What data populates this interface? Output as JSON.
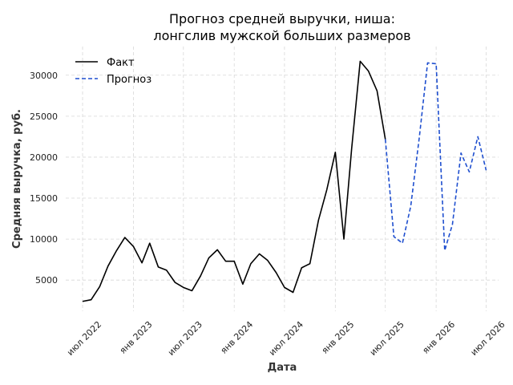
{
  "chart_data": {
    "type": "line",
    "title_lines": [
      "Прогноз средней выручки, ниша:",
      "лонгслив мужской больших размеров"
    ],
    "xlabel": "Дата",
    "ylabel": "Средняя выручка, руб.",
    "x_ticks": [
      {
        "date": "2022-07-01",
        "label": "июл 2022"
      },
      {
        "date": "2023-01-01",
        "label": "янв 2023"
      },
      {
        "date": "2023-07-01",
        "label": "июл 2023"
      },
      {
        "date": "2024-01-01",
        "label": "янв 2024"
      },
      {
        "date": "2024-07-01",
        "label": "июл 2024"
      },
      {
        "date": "2025-01-01",
        "label": "янв 2025"
      },
      {
        "date": "2025-07-01",
        "label": "июл 2025"
      },
      {
        "date": "2026-01-01",
        "label": "янв 2026"
      },
      {
        "date": "2026-07-01",
        "label": "июл 2026"
      }
    ],
    "y_ticks": [
      5000,
      10000,
      15000,
      20000,
      25000,
      30000
    ],
    "xlim": [
      "2022-05-01",
      "2026-08-15"
    ],
    "ylim": [
      1200,
      33500
    ],
    "grid": true,
    "legend": "top-left",
    "series": [
      {
        "name": "Факт",
        "color": "#000000",
        "style": "solid",
        "points": [
          [
            "2022-07-01",
            2400
          ],
          [
            "2022-08-01",
            2600
          ],
          [
            "2022-09-01",
            4200
          ],
          [
            "2022-10-01",
            6700
          ],
          [
            "2022-11-01",
            8600
          ],
          [
            "2022-12-01",
            10200
          ],
          [
            "2023-01-01",
            9100
          ],
          [
            "2023-02-01",
            7100
          ],
          [
            "2023-03-01",
            9500
          ],
          [
            "2023-04-01",
            6600
          ],
          [
            "2023-05-01",
            6200
          ],
          [
            "2023-06-01",
            4700
          ],
          [
            "2023-07-01",
            4100
          ],
          [
            "2023-08-01",
            3700
          ],
          [
            "2023-09-01",
            5500
          ],
          [
            "2023-10-01",
            7700
          ],
          [
            "2023-11-01",
            8700
          ],
          [
            "2023-12-01",
            7300
          ],
          [
            "2024-01-01",
            7300
          ],
          [
            "2024-02-01",
            4500
          ],
          [
            "2024-03-01",
            7000
          ],
          [
            "2024-04-01",
            8200
          ],
          [
            "2024-05-01",
            7400
          ],
          [
            "2024-06-01",
            5900
          ],
          [
            "2024-07-01",
            4100
          ],
          [
            "2024-08-01",
            3500
          ],
          [
            "2024-09-01",
            6500
          ],
          [
            "2024-10-01",
            7000
          ],
          [
            "2024-11-01",
            12300
          ],
          [
            "2024-12-01",
            16000
          ],
          [
            "2025-01-01",
            20600
          ],
          [
            "2025-02-01",
            10000
          ],
          [
            "2025-03-01",
            21000
          ],
          [
            "2025-04-01",
            31700
          ],
          [
            "2025-05-01",
            30500
          ],
          [
            "2025-06-01",
            28100
          ],
          [
            "2025-07-01",
            22200
          ]
        ]
      },
      {
        "name": "Прогноз",
        "color": "#1f4fcf",
        "style": "dashed",
        "points": [
          [
            "2025-07-01",
            22200
          ],
          [
            "2025-08-01",
            10300
          ],
          [
            "2025-09-01",
            9500
          ],
          [
            "2025-10-01",
            14000
          ],
          [
            "2025-11-01",
            22400
          ],
          [
            "2025-12-01",
            31500
          ],
          [
            "2026-01-01",
            31400
          ],
          [
            "2026-02-01",
            8600
          ],
          [
            "2026-03-01",
            11800
          ],
          [
            "2026-04-01",
            20500
          ],
          [
            "2026-05-01",
            18200
          ],
          [
            "2026-06-01",
            22500
          ],
          [
            "2026-07-01",
            18400
          ]
        ]
      }
    ]
  }
}
